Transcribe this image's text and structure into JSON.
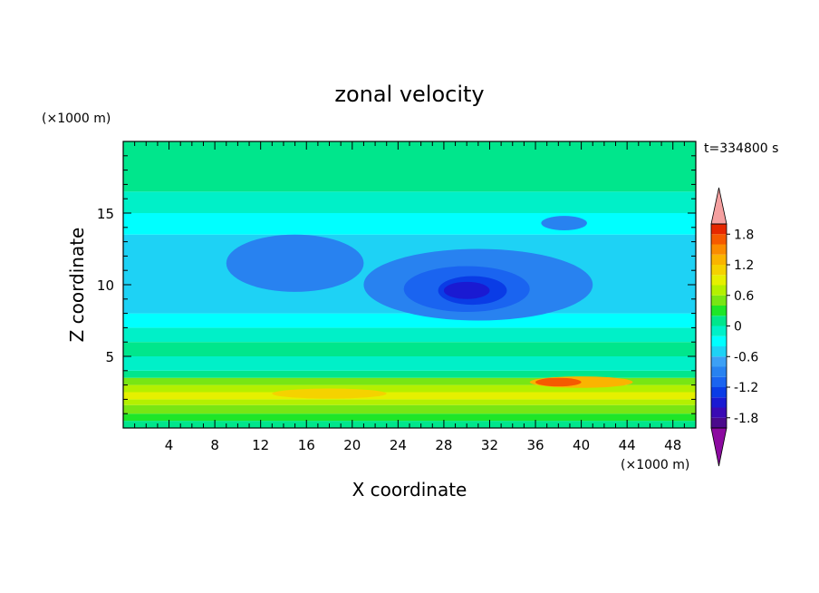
{
  "chart_data": {
    "type": "heatmap",
    "title": "zonal velocity",
    "xlabel": "X coordinate",
    "ylabel": "Z coordinate",
    "x_unit": "(×1000 m)",
    "y_unit": "(×1000 m)",
    "time_label": "t=334800 s",
    "xlim": [
      0,
      50
    ],
    "ylim": [
      0,
      20
    ],
    "x_ticks": [
      4,
      8,
      12,
      16,
      20,
      24,
      28,
      32,
      36,
      40,
      44,
      48
    ],
    "y_ticks": [
      5,
      10,
      15
    ],
    "colorbar": {
      "levels": [
        -2.0,
        -1.8,
        -1.6,
        -1.4,
        -1.2,
        -1.0,
        -0.8,
        -0.6,
        -0.4,
        -0.2,
        0.0,
        0.2,
        0.4,
        0.6,
        0.8,
        1.0,
        1.2,
        1.4,
        1.6,
        1.8,
        2.0
      ],
      "colors": [
        "#4b0a8c",
        "#3a0ab4",
        "#1a1ad2",
        "#0a3ce6",
        "#1a64f0",
        "#2882f0",
        "#3ca0f5",
        "#1ed2f5",
        "#00ffff",
        "#00f0c8",
        "#00e68c",
        "#1ee628",
        "#78e614",
        "#b4f000",
        "#e6f000",
        "#f5d200",
        "#fab400",
        "#fa8c00",
        "#f55a00",
        "#e62800"
      ],
      "under_color": "#8c0aa0",
      "over_color": "#f5a0a0",
      "tick_labels": [
        "1.8",
        "1.2",
        "0.6",
        "0",
        "-0.6",
        "-1.2",
        "-1.8"
      ],
      "tick_values": [
        1.8,
        1.2,
        0.6,
        0.0,
        -0.6,
        -1.2,
        -1.8
      ]
    },
    "bands": [
      {
        "z": [
          0.0,
          0.5
        ],
        "value": 0.1
      },
      {
        "z": [
          0.5,
          1.0
        ],
        "value": 0.3
      },
      {
        "z": [
          1.0,
          1.6
        ],
        "value": 0.5
      },
      {
        "z": [
          1.6,
          2.0
        ],
        "value": 0.7
      },
      {
        "z": [
          2.0,
          2.5
        ],
        "value": 0.9
      },
      {
        "z": [
          2.5,
          3.0
        ],
        "value": 0.7
      },
      {
        "z": [
          3.0,
          3.5
        ],
        "value": 0.5
      },
      {
        "z": [
          3.5,
          4.0
        ],
        "value": 0.1
      },
      {
        "z": [
          4.0,
          5.0
        ],
        "value": -0.1
      },
      {
        "z": [
          5.0,
          6.0
        ],
        "value": 0.1
      },
      {
        "z": [
          6.0,
          7.0
        ],
        "value": -0.1
      },
      {
        "z": [
          7.0,
          8.0
        ],
        "value": -0.3
      },
      {
        "z": [
          8.0,
          13.5
        ],
        "value": -0.5
      },
      {
        "z": [
          13.5,
          15.0
        ],
        "value": -0.3
      },
      {
        "z": [
          15.0,
          16.5
        ],
        "value": -0.1
      },
      {
        "z": [
          16.5,
          20.0
        ],
        "value": 0.1
      }
    ],
    "features": [
      {
        "x": 15,
        "z": 11.5,
        "rx": 6.0,
        "rz": 2.0,
        "value": -0.9
      },
      {
        "x": 31,
        "z": 10.0,
        "rx": 10.0,
        "rz": 2.5,
        "value": -0.9
      },
      {
        "x": 30,
        "z": 9.7,
        "rx": 5.5,
        "rz": 1.6,
        "value": -1.1
      },
      {
        "x": 30.5,
        "z": 9.6,
        "rx": 3.0,
        "rz": 1.0,
        "value": -1.3
      },
      {
        "x": 30,
        "z": 9.6,
        "rx": 2.0,
        "rz": 0.6,
        "value": -1.5
      },
      {
        "x": 38.5,
        "z": 14.3,
        "rx": 2.0,
        "rz": 0.5,
        "value": -0.9
      },
      {
        "x": 40,
        "z": 3.2,
        "rx": 4.5,
        "rz": 0.4,
        "value": 1.3
      },
      {
        "x": 38,
        "z": 3.2,
        "rx": 2.0,
        "rz": 0.3,
        "value": 1.7
      },
      {
        "x": 18,
        "z": 2.4,
        "rx": 5.0,
        "rz": 0.35,
        "value": 1.1
      }
    ]
  }
}
